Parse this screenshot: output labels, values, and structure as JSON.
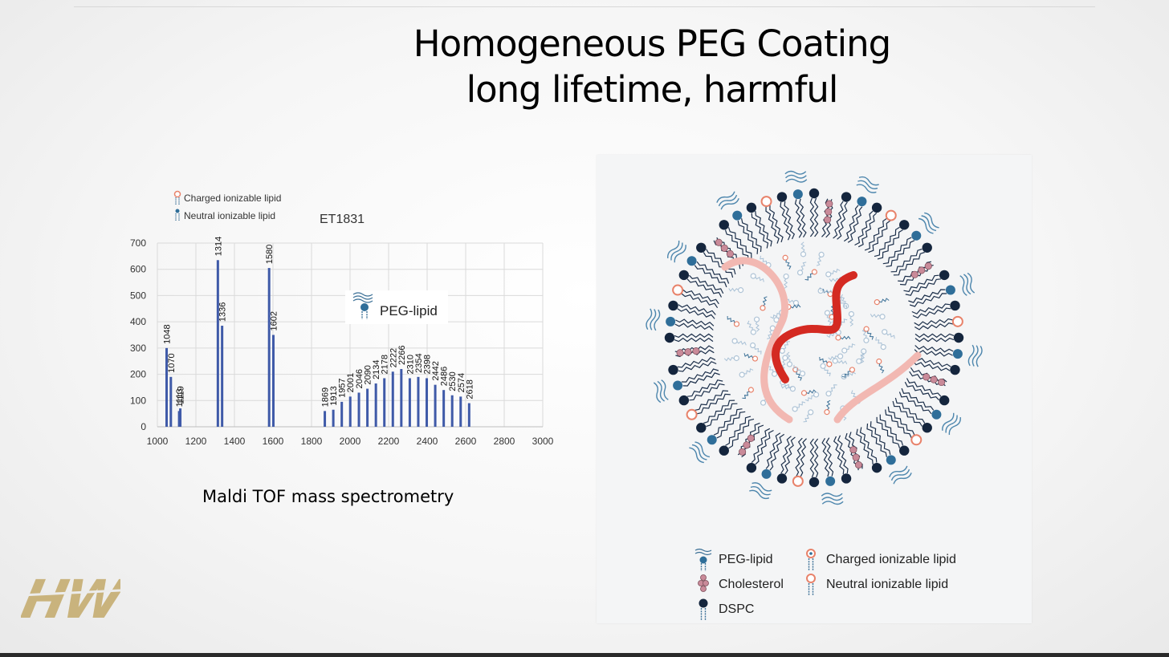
{
  "slide": {
    "title_line1": "Homogeneous PEG Coating",
    "title_line2": "long lifetime, harmful",
    "caption": "Maldi TOF mass spectrometry"
  },
  "colors": {
    "bar": "#3f5aa8",
    "peg": "#2f6e99",
    "cholesterol": "#c98a99",
    "dspc": "#14253d",
    "charged_lipid": "#e8826a",
    "rna": "#d42a22",
    "rna_faded": "#f2b8b2",
    "logo": "#c9b37d"
  },
  "chart_data": {
    "type": "bar",
    "title": "ET1831",
    "xlabel": "",
    "ylabel": "",
    "xlim": [
      1000,
      3000
    ],
    "ylim": [
      0,
      700
    ],
    "x_ticks": [
      1000,
      1200,
      1400,
      1600,
      1800,
      2000,
      2200,
      2400,
      2600,
      2800,
      3000
    ],
    "y_ticks": [
      0,
      100,
      200,
      300,
      400,
      500,
      600,
      700
    ],
    "grid": true,
    "legend_position": "top-left",
    "legend": [
      "Charged ionizable lipid",
      "Neutral ionizable lipid"
    ],
    "inset_label": "PEG-lipid",
    "x": [
      1048,
      1070,
      1113,
      1119,
      1314,
      1336,
      1580,
      1602,
      1869,
      1913,
      1957,
      2001,
      2046,
      2090,
      2134,
      2178,
      2222,
      2266,
      2310,
      2354,
      2398,
      2442,
      2486,
      2530,
      2574,
      2618
    ],
    "values": [
      300,
      190,
      60,
      70,
      635,
      385,
      605,
      350,
      60,
      65,
      95,
      115,
      130,
      145,
      165,
      185,
      210,
      220,
      185,
      190,
      185,
      160,
      140,
      120,
      115,
      90
    ],
    "data_labels": [
      "1048",
      "1070",
      "1113",
      "1119",
      "1314",
      "1336",
      "1580",
      "1602",
      "1869",
      "1913",
      "1957",
      "2001",
      "2046",
      "2090",
      "2134",
      "2178",
      "2222",
      "2266",
      "2310",
      "2354",
      "2398",
      "2442",
      "2486",
      "2530",
      "2574",
      "2618"
    ]
  },
  "diagram_legend": [
    {
      "label": "PEG-lipid",
      "icon": "peg-lipid-icon"
    },
    {
      "label": "Charged ionizable lipid",
      "icon": "charged-lipid-icon"
    },
    {
      "label": "Cholesterol",
      "icon": "cholesterol-icon"
    },
    {
      "label": "Neutral ionizable lipid",
      "icon": "neutral-lipid-icon"
    },
    {
      "label": "DSPC",
      "icon": "dspc-icon"
    }
  ],
  "logo": {
    "text": "HW"
  }
}
